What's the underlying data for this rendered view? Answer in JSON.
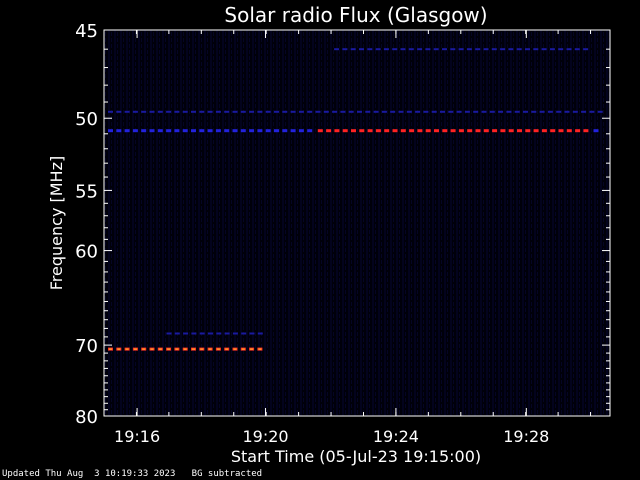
{
  "chart_data": {
    "type": "heatmap",
    "title": "Solar radio Flux (Glasgow)",
    "xlabel": "Start Time (05-Jul-23 19:15:00)",
    "ylabel": "Frequency [MHz]",
    "x_range_minutes": [
      19.25,
      19.51
    ],
    "x_ticks": [
      {
        "value": 19.267,
        "label": "19:16"
      },
      {
        "value": 19.333,
        "label": "19:20"
      },
      {
        "value": 19.4,
        "label": "19:24"
      },
      {
        "value": 19.467,
        "label": "19:28"
      }
    ],
    "y_range": [
      45,
      80
    ],
    "y_scale": "reciprocal",
    "y_ticks": [
      45,
      50,
      55,
      60,
      70,
      80
    ],
    "colorscale": [
      "#000010",
      "#0a0a55",
      "#2222cc",
      "#cc1133",
      "#ff4422",
      "#ffcc33"
    ],
    "features": [
      {
        "description": "persistent interference band",
        "frequency_mhz": 50.8,
        "start": "19:15:00",
        "end": "19:30:30",
        "intensity": "high",
        "color_segments": [
          {
            "start": "19:15:00",
            "end": "19:21:30",
            "color": "#2222dd"
          },
          {
            "start": "19:21:30",
            "end": "19:30:00",
            "color": "#ff2222"
          },
          {
            "start": "19:30:00",
            "end": "19:30:30",
            "color": "#2222dd"
          }
        ]
      },
      {
        "description": "weak band",
        "frequency_mhz": 49.6,
        "start": "19:15:00",
        "end": "19:30:30",
        "intensity": "low"
      },
      {
        "description": "interference band",
        "frequency_mhz": 70.5,
        "start": "19:15:00",
        "end": "19:20:00",
        "intensity": "very high"
      },
      {
        "description": "weak band",
        "frequency_mhz": 68.6,
        "start": "19:16:50",
        "end": "19:20:00",
        "intensity": "low"
      },
      {
        "description": "weak band",
        "frequency_mhz": 46.0,
        "start": "19:22:00",
        "end": "19:30:00",
        "intensity": "low"
      }
    ]
  },
  "footer": {
    "updated": "Updated Thu Aug  3 10:19:33 2023",
    "note": "BG subtracted"
  }
}
